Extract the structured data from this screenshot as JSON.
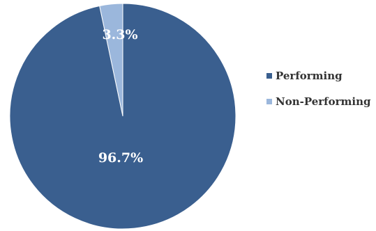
{
  "chart_data": {
    "type": "pie",
    "title": "",
    "categories": [
      "Performing",
      "Non-Performing"
    ],
    "values": [
      96.7,
      3.3
    ],
    "data_labels": [
      "96.7%",
      "3.3%"
    ],
    "colors": [
      "#3a5f8f",
      "#9bb7dc"
    ],
    "legend_position": "right"
  }
}
